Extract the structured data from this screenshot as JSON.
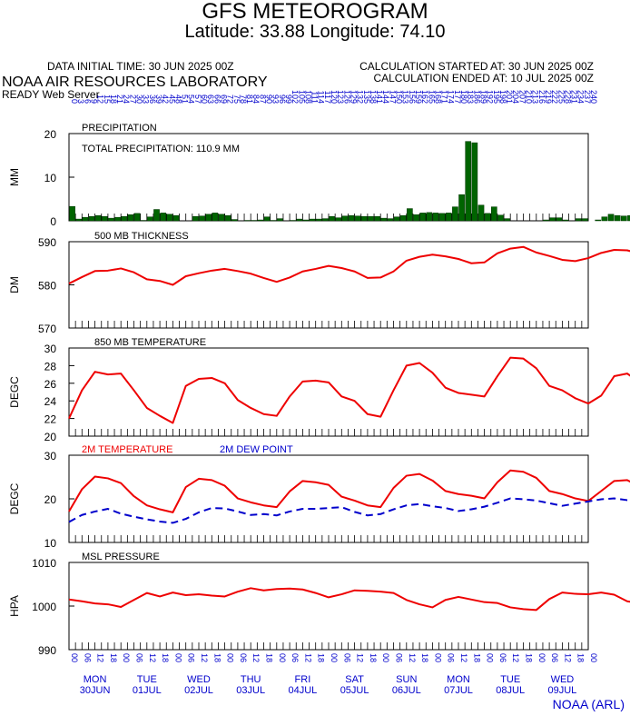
{
  "header": {
    "title": "GFS METEOROGRAM",
    "location": "Latitude: 33.88 Longitude:  74.10",
    "init_time": "DATA INITIAL TIME: 30 JUN 2025 00Z",
    "calc_started": "CALCULATION STARTED AT: 30 JUN 2025 00Z",
    "calc_ended": "CALCULATION ENDED AT: 10 JUL 2025 00Z",
    "org": "NOAA AIR RESOURCES LABORATORY",
    "server": "READY Web Server"
  },
  "footer": {
    "credit": "NOAA (ARL)"
  },
  "colors": {
    "red": "#ee0000",
    "blue": "#0000cc",
    "green": "#006400",
    "axis": "#000000"
  },
  "chart_data": [
    {
      "type": "bar",
      "title": "PRECIPITATION",
      "annotation": "TOTAL PRECIPITATION: 110.9 MM",
      "ylabel": "MM",
      "ylim": [
        0,
        20
      ],
      "yticks": [
        "0",
        "10",
        "20"
      ],
      "x_hours_step": 3,
      "series": [
        {
          "name": "PRECIPITATION",
          "values": [
            3.3,
            0.4,
            0.8,
            1.0,
            1.2,
            1.0,
            0.6,
            0.8,
            1.0,
            1.4,
            1.7,
            0.1,
            0.9,
            2.6,
            1.8,
            1.5,
            1.2,
            0,
            0,
            1.0,
            1.1,
            1.5,
            1.8,
            1.5,
            1.2,
            0.3,
            0,
            0.1,
            0.1,
            0.2,
            0.9,
            0.1,
            0.5,
            0,
            0.1,
            0.4,
            0.2,
            0.4,
            0.4,
            0.5,
            1.0,
            0.7,
            1.1,
            1.2,
            1.1,
            1.0,
            1.0,
            1.0,
            0.6,
            0.5,
            0.9,
            1.2,
            2.8,
            1.4,
            1.8,
            1.9,
            1.8,
            1.7,
            1.8,
            3.2,
            6.0,
            18.2,
            17.9,
            3.6,
            1.7,
            3.2,
            1.3,
            0.5,
            0,
            0,
            0,
            0,
            0,
            0.2,
            0.7,
            0.7,
            0.2,
            0,
            0.5,
            0.5,
            0,
            0.2,
            0.9,
            1.5,
            1.2,
            1.1,
            1.2,
            0.2,
            0.4,
            0.3
          ]
        }
      ]
    },
    {
      "type": "line",
      "title": "500 MB  THICKNESS",
      "ylabel": "DM",
      "ylim": [
        570,
        590
      ],
      "yticks": [
        "570",
        "580",
        "590"
      ],
      "x_hours_step": 6,
      "series": [
        {
          "name": "500 MB  THICKNESS",
          "values": [
            580.3,
            581.8,
            583.2,
            583.3,
            583.8,
            582.9,
            581.3,
            580.9,
            580.0,
            582.0,
            582.7,
            583.3,
            583.7,
            583.2,
            582.6,
            581.6,
            580.7,
            581.7,
            583.1,
            583.7,
            584.4,
            583.9,
            583.1,
            581.6,
            581.7,
            583.1,
            585.6,
            586.5,
            587.0,
            586.6,
            586.0,
            585.0,
            585.2,
            587.3,
            588.4,
            588.8,
            587.5,
            586.7,
            585.8,
            585.5,
            586.2,
            587.4,
            588.1,
            588.0,
            587.2,
            585.5,
            584.9,
            585.4,
            586.6,
            587.0,
            586.4,
            585.2,
            583.4,
            580.8,
            579.6,
            578.9,
            577.7,
            578.1,
            578.9,
            579.1,
            578.9,
            578.8,
            580.8,
            582.9,
            584.4,
            584.1,
            583.5,
            582.8,
            581.9,
            581.2,
            582.9,
            584.6,
            585.1,
            585.4,
            584.3,
            583.2,
            582.4,
            582.1
          ]
        }
      ]
    },
    {
      "type": "line",
      "title": "850 MB  TEMPERATURE",
      "ylabel": "DEGC",
      "ylim": [
        20,
        30
      ],
      "yticks": [
        "20",
        "22",
        "24",
        "26",
        "28",
        "30"
      ],
      "x_hours_step": 6,
      "series": [
        {
          "name": "850 MB  TEMPERATURE",
          "values": [
            22.0,
            25.2,
            27.3,
            27.0,
            27.1,
            25.2,
            23.2,
            22.3,
            21.5,
            25.7,
            26.5,
            26.6,
            26.0,
            24.1,
            23.2,
            22.5,
            22.3,
            24.5,
            26.2,
            26.3,
            26.1,
            24.5,
            24.0,
            22.5,
            22.2,
            25.2,
            28.0,
            28.3,
            27.2,
            25.5,
            24.9,
            24.7,
            24.5,
            26.8,
            28.9,
            28.8,
            27.7,
            25.7,
            25.2,
            24.3,
            23.7,
            24.6,
            26.8,
            27.1,
            26.1,
            24.7,
            24.3,
            23.9,
            23.6,
            23.8,
            26.0,
            26.9,
            26.1,
            24.7,
            23.6,
            22.6,
            21.7,
            20.9,
            22.6,
            21.0,
            21.4,
            21.4,
            21.3,
            21.5,
            21.0,
            23.8,
            26.4,
            27.3,
            26.0,
            23.7,
            22.9,
            22.6,
            22.0,
            25.0,
            27.0,
            26.7,
            26.8,
            24.6,
            24.3,
            23.8,
            22.9
          ]
        }
      ]
    },
    {
      "type": "line",
      "title": "",
      "ylabel": "DEGC",
      "ylim": [
        10,
        30
      ],
      "yticks": [
        "10",
        "20",
        "30"
      ],
      "x_hours_step": 6,
      "legend": [
        "2M TEMPERATURE",
        "2M  DEW POINT"
      ],
      "series": [
        {
          "name": "2M TEMPERATURE",
          "values": [
            17.1,
            22.2,
            25.1,
            24.7,
            23.6,
            20.6,
            18.5,
            17.6,
            16.9,
            22.7,
            24.6,
            24.3,
            23.0,
            20.1,
            19.2,
            18.5,
            18.1,
            21.7,
            24.1,
            23.8,
            23.2,
            20.5,
            19.6,
            18.5,
            18.1,
            22.5,
            25.3,
            25.7,
            24.2,
            21.8,
            21.1,
            20.7,
            20.1,
            23.8,
            26.5,
            26.2,
            24.8,
            21.8,
            21.1,
            20.1,
            19.5,
            21.8,
            24.1,
            24.3,
            22.7,
            21.0,
            20.7,
            20.3,
            20.1,
            20.7,
            23.1,
            24.4,
            23.4,
            21.5,
            20.0,
            18.6,
            18.0,
            17.0,
            18.8,
            17.2,
            17.5,
            17.2,
            17.2,
            17.0,
            16.5,
            19.8,
            23.4,
            24.4,
            23.4,
            19.3,
            18.3,
            17.8,
            17.6,
            22.2,
            24.9,
            24.6,
            23.8,
            20.9,
            20.1,
            19.1,
            17.9
          ]
        },
        {
          "name": "2M  DEW POINT",
          "values": [
            14.7,
            16.3,
            17.1,
            17.7,
            16.6,
            15.9,
            15.3,
            14.8,
            14.5,
            15.4,
            16.9,
            17.9,
            17.8,
            17.1,
            16.3,
            16.5,
            16.2,
            17.1,
            17.7,
            17.7,
            17.9,
            18.1,
            17.0,
            16.2,
            16.5,
            17.6,
            18.5,
            18.8,
            18.3,
            17.9,
            17.2,
            17.6,
            18.2,
            19.1,
            20.1,
            19.9,
            19.6,
            19.0,
            18.4,
            18.9,
            19.4,
            19.9,
            20.1,
            19.7,
            19.6,
            19.5,
            19.2,
            19.1,
            19.2,
            19.6,
            19.9,
            20.0,
            19.7,
            18.9,
            17.6,
            17.4,
            16.3,
            15.7,
            15.6,
            15.9,
            15.7,
            15.6,
            15.3,
            15.0,
            14.6,
            15.5,
            16.6,
            17.5,
            17.2,
            16.5,
            15.9,
            15.7,
            16.6,
            17.4,
            17.9,
            18.5,
            18.5,
            17.8,
            17.3,
            16.9,
            16.0
          ]
        }
      ]
    },
    {
      "type": "line",
      "title": "MSL PRESSURE",
      "ylabel": "HPA",
      "ylim": [
        990,
        1010
      ],
      "yticks": [
        "990",
        "1000",
        "1010"
      ],
      "x_hours_step": 6,
      "series": [
        {
          "name": "MSL PRESSURE",
          "values": [
            1001.5,
            1001.1,
            1000.6,
            1000.4,
            999.8,
            1001.4,
            1003.0,
            1002.2,
            1003.1,
            1002.5,
            1002.7,
            1002.4,
            1002.2,
            1003.3,
            1004.1,
            1003.6,
            1003.9,
            1004.0,
            1003.8,
            1003.0,
            1002.0,
            1002.7,
            1003.6,
            1003.5,
            1003.3,
            1003.0,
            1001.4,
            1000.4,
            999.7,
            1001.4,
            1002.1,
            1001.5,
            1000.9,
            1000.7,
            999.7,
            999.3,
            999.1,
            1001.6,
            1003.1,
            1002.8,
            1002.7,
            1003.1,
            1002.6,
            1001.1,
            1000.6,
            1002.0,
            1003.4,
            1003.3,
            1003.6,
            1004.2,
            1003.9,
            1002.0,
            1001.9,
            1003.6,
            1004.4,
            1001.8,
            1003.0,
            1005.9,
            1005.9,
            1007.2,
            1007.2,
            1007.1,
            1007.4,
            1006.5,
            1006.3,
            1005.9,
            1005.0,
            1003.2,
            1003.1,
            1004.2,
            1004.9,
            1004.6,
            1004.8,
            1004.8,
            1004.2,
            1003.6,
            1002.9,
            1004.9,
            1005.4,
            1004.6,
            1004.1
          ]
        }
      ]
    }
  ],
  "top_axis": {
    "hours": [
      "0",
      "3",
      "6",
      "9",
      "12",
      "15",
      "18",
      "21",
      "24",
      "27",
      "30",
      "33",
      "36",
      "39",
      "42",
      "45",
      "48",
      "51",
      "54",
      "57",
      "60",
      "63",
      "66",
      "69",
      "72",
      "75",
      "78",
      "81",
      "84",
      "87",
      "90",
      "93",
      "96",
      "99",
      "102",
      "105",
      "108",
      "111",
      "114",
      "117",
      "120",
      "123",
      "126",
      "129",
      "132",
      "135",
      "138",
      "141",
      "144",
      "147",
      "150",
      "153",
      "156",
      "159",
      "162",
      "165",
      "168",
      "171",
      "174",
      "177",
      "180",
      "183",
      "186",
      "189",
      "192",
      "195",
      "198",
      "201",
      "204",
      "207",
      "210",
      "213",
      "216",
      "219",
      "222",
      "225",
      "228",
      "231",
      "234",
      "237",
      "240"
    ]
  },
  "bottom_axis": {
    "hour_labels": [
      "00",
      "06",
      "12",
      "18"
    ],
    "days": [
      {
        "dow": "MON",
        "date": "30JUN"
      },
      {
        "dow": "TUE",
        "date": "01JUL"
      },
      {
        "dow": "WED",
        "date": "02JUL"
      },
      {
        "dow": "THU",
        "date": "03JUL"
      },
      {
        "dow": "FRI",
        "date": "04JUL"
      },
      {
        "dow": "SAT",
        "date": "05JUL"
      },
      {
        "dow": "SUN",
        "date": "06JUL"
      },
      {
        "dow": "MON",
        "date": "07JUL"
      },
      {
        "dow": "TUE",
        "date": "08JUL"
      },
      {
        "dow": "WED",
        "date": "09JUL"
      }
    ]
  }
}
